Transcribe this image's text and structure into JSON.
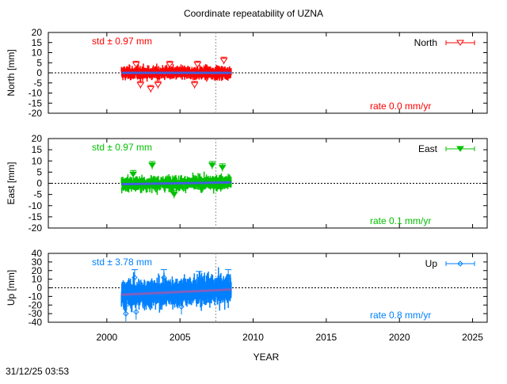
{
  "chart_data": {
    "type": "scatter",
    "title": "Coordinate repeatability of UZNA",
    "xlabel": "YEAR",
    "xlim": [
      1996,
      2026
    ],
    "xticks": [
      2000,
      2005,
      2010,
      2015,
      2020,
      2025
    ],
    "reference_epoch": 2007.45,
    "timestamp": "31/12/25 03:53",
    "panels": [
      {
        "name": "North",
        "ylabel": "North [mm]",
        "ylim": [
          -20,
          20
        ],
        "yticks": [
          20,
          15,
          10,
          5,
          0,
          -5,
          -10,
          -15,
          -20
        ],
        "std_label": "std ± 0.97 mm",
        "rate_label": "rate  0.0 mm/yr",
        "color": "#ff0000",
        "trend_color": "#4060e0",
        "marker": "triangle-down-open",
        "time_range": [
          2001.0,
          2008.5
        ],
        "std": 0.97,
        "rate": 0.0,
        "trend": [
          0,
          0
        ],
        "outliers": [
          [
            2002.0,
            4
          ],
          [
            2003.0,
            -8
          ],
          [
            2002.3,
            -6
          ],
          [
            2003.5,
            -6
          ],
          [
            2004.3,
            4
          ],
          [
            2006.0,
            -6
          ],
          [
            2006.2,
            4
          ],
          [
            2008.0,
            6
          ]
        ]
      },
      {
        "name": "East",
        "ylabel": "East [mm]",
        "ylim": [
          -20,
          20
        ],
        "yticks": [
          20,
          15,
          10,
          5,
          0,
          -5,
          -10,
          -15,
          -20
        ],
        "std_label": "std ± 0.97 mm",
        "rate_label": "rate  0.1 mm/yr",
        "color": "#00c000",
        "trend_color": "#4060e0",
        "marker": "triangle-down-filled",
        "time_range": [
          2001.0,
          2008.5
        ],
        "std": 0.97,
        "rate": 0.1,
        "trend": [
          -0.4,
          0.4
        ],
        "outliers": [
          [
            2003.1,
            8
          ],
          [
            2007.2,
            8
          ],
          [
            2007.9,
            7
          ],
          [
            2004.6,
            -5
          ],
          [
            2001.8,
            4
          ]
        ]
      },
      {
        "name": "Up",
        "ylabel": "Up [mm]",
        "ylim": [
          -40,
          40
        ],
        "yticks": [
          40,
          30,
          20,
          10,
          0,
          -10,
          -20,
          -30,
          -40
        ],
        "std_label": "std ± 3.78 mm",
        "rate_label": "rate  0.8 mm/yr",
        "color": "#0080ff",
        "trend_color": "#8060c0",
        "marker": "diamond-open",
        "time_range": [
          2001.0,
          2008.5
        ],
        "std": 3.78,
        "rate": 0.8,
        "trend": [
          -8,
          -2
        ],
        "outliers": [
          [
            2001.3,
            -30
          ],
          [
            2002.0,
            -28
          ],
          [
            2001.9,
            12
          ],
          [
            2003.9,
            12
          ],
          [
            2006.3,
            10
          ],
          [
            2008.3,
            12
          ],
          [
            2005.1,
            -22
          ]
        ]
      }
    ]
  }
}
